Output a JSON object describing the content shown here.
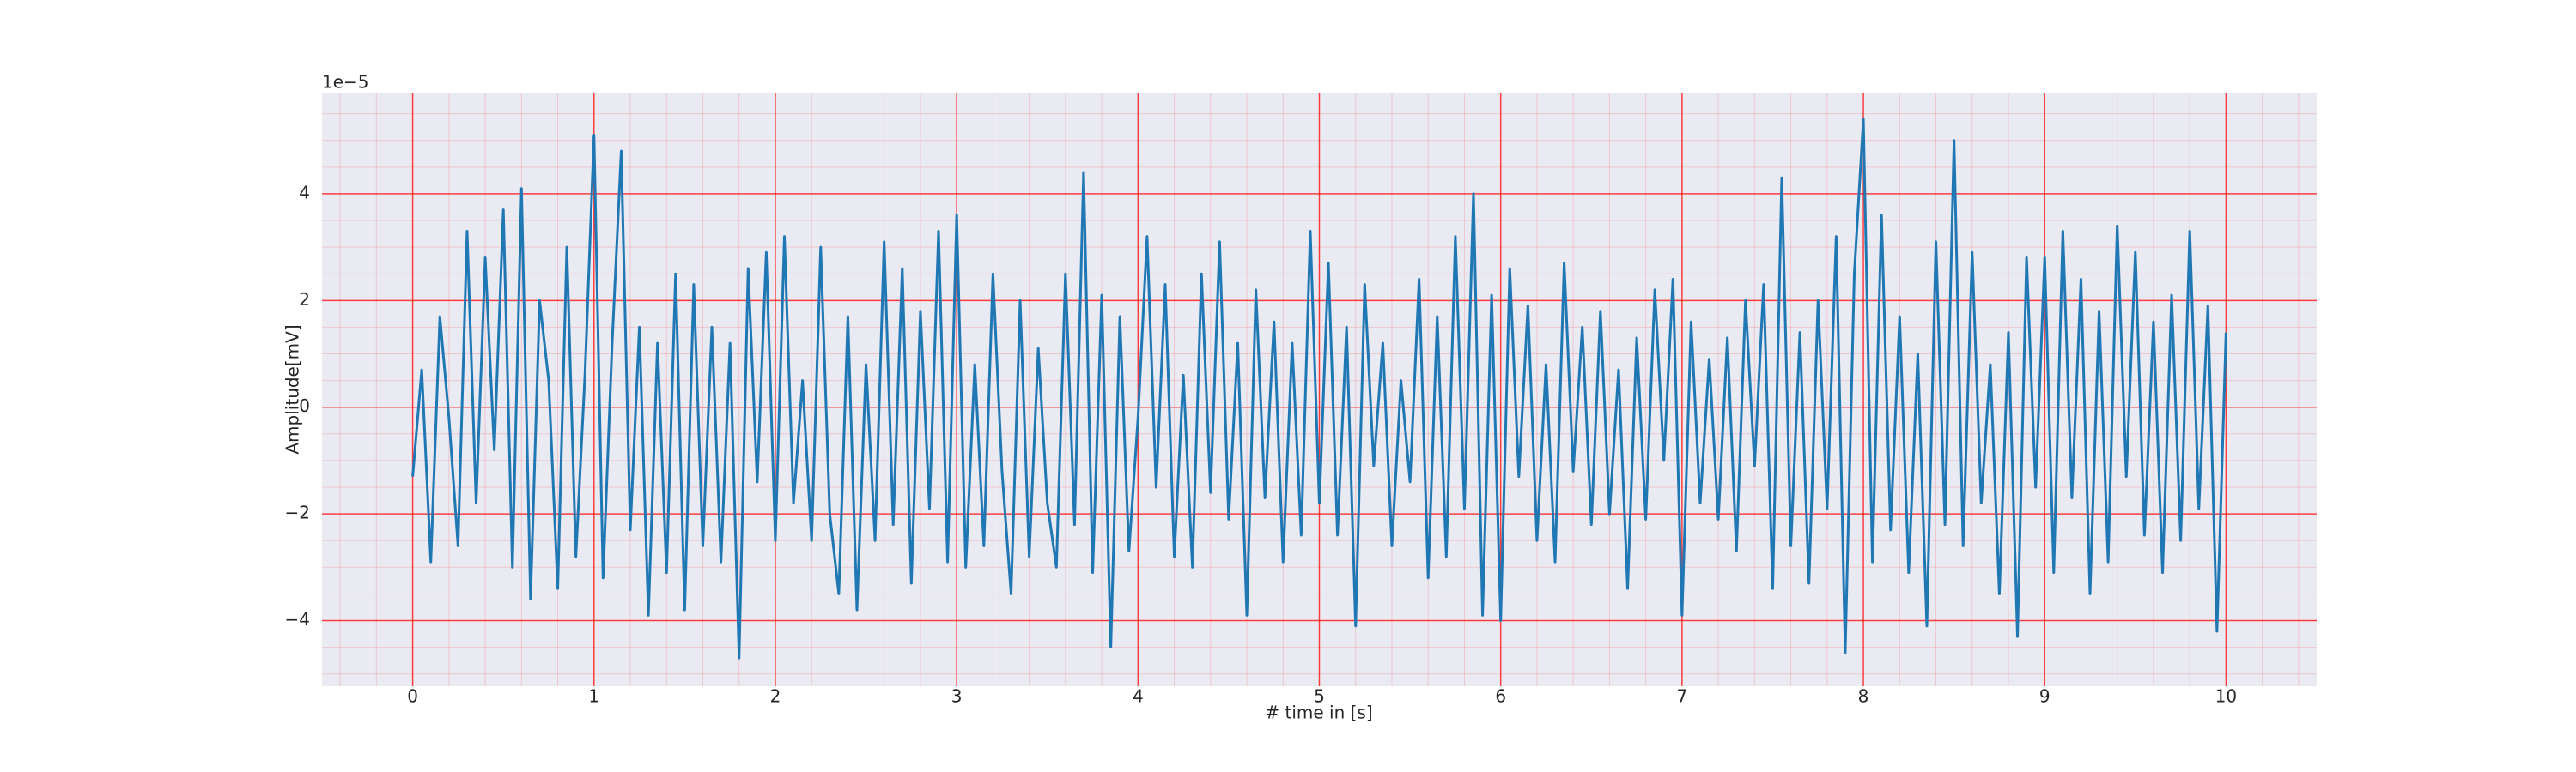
{
  "chart_data": {
    "type": "line",
    "xlabel": "# time in [s]",
    "ylabel": "Amplitude[mV]",
    "y_offset_label": "1e−5",
    "xlim": [
      -0.5,
      10.5
    ],
    "ylim": [
      -5.23,
      5.88
    ],
    "xticks": [
      0,
      1,
      2,
      3,
      4,
      5,
      6,
      7,
      8,
      9,
      10
    ],
    "yticks": [
      {
        "value": -4,
        "label": "−4"
      },
      {
        "value": -2,
        "label": "−2"
      },
      0,
      2,
      4
    ],
    "grid": true,
    "grid_color": "#ff0000",
    "minor_grid": {
      "x_step": 0.2,
      "y_step": 0.5
    },
    "background": "#eaeaf2",
    "series": [
      {
        "color": "#1f77b4",
        "x": [
          0,
          0.05,
          0.1,
          0.15,
          0.2,
          0.25,
          0.3,
          0.35,
          0.4,
          0.45,
          0.5,
          0.55,
          0.6,
          0.65,
          0.7,
          0.75,
          0.8,
          0.85,
          0.9,
          0.95,
          1,
          1.05,
          1.1,
          1.15,
          1.2,
          1.25,
          1.3,
          1.35,
          1.4,
          1.45,
          1.5,
          1.55,
          1.6,
          1.65,
          1.7,
          1.75,
          1.8,
          1.85,
          1.9,
          1.95,
          2,
          2.05,
          2.1,
          2.15,
          2.2,
          2.25,
          2.3,
          2.35,
          2.4,
          2.45,
          2.5,
          2.55,
          2.6,
          2.65,
          2.7,
          2.75,
          2.8,
          2.85,
          2.9,
          2.95,
          3,
          3.05,
          3.1,
          3.15,
          3.2,
          3.25,
          3.3,
          3.35,
          3.4,
          3.45,
          3.5,
          3.55,
          3.6,
          3.65,
          3.7,
          3.75,
          3.8,
          3.85,
          3.9,
          3.95,
          4,
          4.05,
          4.1,
          4.15,
          4.2,
          4.25,
          4.3,
          4.35,
          4.4,
          4.45,
          4.5,
          4.55,
          4.6,
          4.65,
          4.7,
          4.75,
          4.8,
          4.85,
          4.9,
          4.95,
          5,
          5.05,
          5.1,
          5.15,
          5.2,
          5.25,
          5.3,
          5.35,
          5.4,
          5.45,
          5.5,
          5.55,
          5.6,
          5.65,
          5.7,
          5.75,
          5.8,
          5.85,
          5.9,
          5.95,
          6,
          6.05,
          6.1,
          6.15,
          6.2,
          6.25,
          6.3,
          6.35,
          6.4,
          6.45,
          6.5,
          6.55,
          6.6,
          6.65,
          6.7,
          6.75,
          6.8,
          6.85,
          6.9,
          6.95,
          7,
          7.05,
          7.1,
          7.15,
          7.2,
          7.25,
          7.3,
          7.35,
          7.4,
          7.45,
          7.5,
          7.55,
          7.6,
          7.65,
          7.7,
          7.75,
          7.8,
          7.85,
          7.9,
          7.95,
          8,
          8.05,
          8.1,
          8.15,
          8.2,
          8.25,
          8.3,
          8.35,
          8.4,
          8.45,
          8.5,
          8.55,
          8.6,
          8.65,
          8.7,
          8.75,
          8.8,
          8.85,
          8.9,
          8.95,
          9,
          9.05,
          9.1,
          9.15,
          9.2,
          9.25,
          9.3,
          9.35,
          9.4,
          9.45,
          9.5,
          9.55,
          9.6,
          9.65,
          9.7,
          9.75,
          9.8,
          9.85,
          9.9,
          9.95,
          10
        ],
        "values": [
          -1.3,
          0.7,
          -2.9,
          1.7,
          -0.2,
          -2.6,
          3.3,
          -1.8,
          2.8,
          -0.8,
          3.7,
          -3.0,
          4.1,
          -3.6,
          2.0,
          0.5,
          -3.4,
          3.0,
          -2.8,
          0.6,
          5.1,
          -3.2,
          1.2,
          4.8,
          -2.3,
          1.5,
          -3.9,
          1.2,
          -3.1,
          2.5,
          -3.8,
          2.3,
          -2.6,
          1.5,
          -2.9,
          1.2,
          -4.7,
          2.6,
          -1.4,
          2.9,
          -2.5,
          3.2,
          -1.8,
          0.5,
          -2.5,
          3.0,
          -2.0,
          -3.5,
          1.7,
          -3.8,
          0.8,
          -2.5,
          3.1,
          -2.2,
          2.6,
          -3.3,
          1.8,
          -1.9,
          3.3,
          -2.9,
          3.6,
          -3.0,
          0.8,
          -2.6,
          2.5,
          -1.2,
          -3.5,
          2.0,
          -2.8,
          1.1,
          -1.8,
          -3.0,
          2.5,
          -2.2,
          4.4,
          -3.1,
          2.1,
          -4.5,
          1.7,
          -2.7,
          -0.2,
          3.2,
          -1.5,
          2.3,
          -2.8,
          0.6,
          -3.0,
          2.5,
          -1.6,
          3.1,
          -2.1,
          1.2,
          -3.9,
          2.2,
          -1.7,
          1.6,
          -2.9,
          1.2,
          -2.4,
          3.3,
          -1.8,
          2.7,
          -2.4,
          1.5,
          -4.1,
          2.3,
          -1.1,
          1.2,
          -2.6,
          0.5,
          -1.4,
          2.4,
          -3.2,
          1.7,
          -2.8,
          3.2,
          -1.9,
          4.0,
          -3.9,
          2.1,
          -4.0,
          2.6,
          -1.3,
          1.9,
          -2.5,
          0.8,
          -2.9,
          2.7,
          -1.2,
          1.5,
          -2.2,
          1.8,
          -2.0,
          0.7,
          -3.4,
          1.3,
          -2.1,
          2.2,
          -1.0,
          2.4,
          -3.9,
          1.6,
          -1.8,
          0.9,
          -2.1,
          1.3,
          -2.7,
          2.0,
          -1.1,
          2.3,
          -3.4,
          4.3,
          -2.6,
          1.4,
          -3.3,
          2.0,
          -1.9,
          3.2,
          -4.6,
          2.5,
          5.4,
          -2.9,
          3.6,
          -2.3,
          1.7,
          -3.1,
          1.0,
          -4.1,
          3.1,
          -2.2,
          5.0,
          -2.6,
          2.9,
          -1.8,
          0.8,
          -3.5,
          1.4,
          -4.3,
          2.8,
          -1.5,
          2.8,
          -3.1,
          3.3,
          -1.7,
          2.4,
          -3.5,
          1.8,
          -2.9,
          3.4,
          -1.3,
          2.9,
          -2.4,
          1.6,
          -3.1,
          2.1,
          -2.5,
          3.3,
          -1.9,
          1.9,
          -4.2,
          1.4
        ]
      }
    ]
  }
}
